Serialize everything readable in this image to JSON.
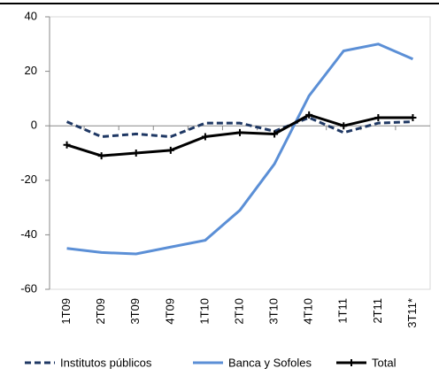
{
  "chart_data": {
    "type": "line",
    "categories": [
      "1T09",
      "2T09",
      "3T09",
      "4T09",
      "1T10",
      "2T10",
      "3T10",
      "4T10",
      "1T11",
      "2T11",
      "3T11*"
    ],
    "series": [
      {
        "name": "Institutos públicos",
        "color": "#1f3864",
        "dashed": true,
        "values": [
          1.5,
          -4,
          -3,
          -4,
          1,
          1,
          -2,
          3,
          -2.5,
          1,
          1.5
        ]
      },
      {
        "name": "Banca y Sofoles",
        "color": "#5b8fd6",
        "dashed": false,
        "values": [
          -45,
          -46.5,
          -47,
          -44.5,
          -42,
          -31,
          -14,
          11,
          27.5,
          30,
          24.5
        ]
      },
      {
        "name": "Total",
        "color": "#000000",
        "dashed": false,
        "marker": "plus",
        "values": [
          -7,
          -11,
          -10,
          -9,
          -4,
          -2.5,
          -3,
          4,
          0,
          3,
          3
        ]
      }
    ],
    "ylim": [
      -60,
      40
    ],
    "yticks": [
      -60,
      -40,
      -20,
      0,
      20,
      40
    ]
  }
}
